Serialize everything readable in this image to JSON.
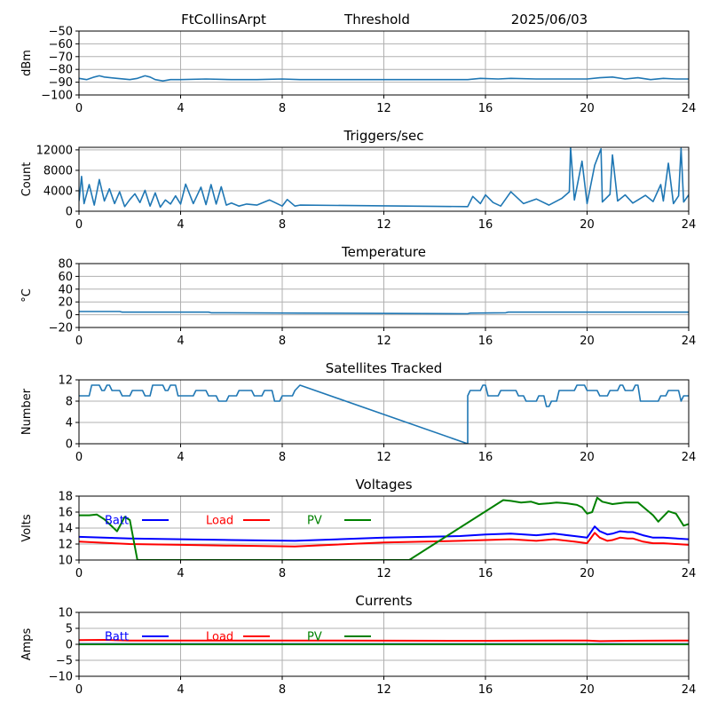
{
  "header": {
    "station": "FtCollinsArpt",
    "mode": "Threshold",
    "date": "2025/06/03"
  },
  "chart_data": [
    {
      "id": "signal",
      "type": "line",
      "title": "",
      "ylabel": "dBm",
      "xlim": [
        0,
        24
      ],
      "ylim": [
        -100,
        -50
      ],
      "xticks": [
        0,
        4,
        8,
        12,
        16,
        20,
        24
      ],
      "yticks": [
        -100,
        -90,
        -80,
        -70,
        -60,
        -50
      ],
      "grid": true,
      "series": [
        {
          "color": "#1f77b4",
          "x": [
            0,
            0.3,
            0.6,
            0.8,
            1.0,
            1.5,
            2.0,
            2.3,
            2.6,
            2.8,
            3.0,
            3.3,
            3.6,
            4,
            5,
            6,
            7,
            8,
            8.7,
            10,
            12,
            14,
            15.3,
            15.8,
            16.5,
            17,
            18,
            19,
            20,
            20.5,
            21,
            21.5,
            22,
            22.5,
            23,
            23.5,
            24
          ],
          "y": [
            -87,
            -88,
            -86,
            -85,
            -86,
            -87,
            -88,
            -87,
            -85,
            -86,
            -88,
            -89,
            -88,
            -88,
            -87.5,
            -88,
            -88,
            -87.5,
            -88,
            -88,
            -88,
            -88,
            -88,
            -87,
            -87.5,
            -87,
            -87.5,
            -87.5,
            -87.5,
            -86.5,
            -86,
            -87.5,
            -86.5,
            -88,
            -87,
            -87.5,
            -87.5
          ]
        }
      ]
    },
    {
      "id": "triggers",
      "type": "line",
      "title": "Triggers/sec",
      "ylabel": "Count",
      "xlim": [
        0,
        24
      ],
      "ylim": [
        0,
        12500
      ],
      "xticks": [
        0,
        4,
        8,
        12,
        16,
        20,
        24
      ],
      "yticks": [
        0,
        4000,
        8000,
        12000
      ],
      "grid": true,
      "series": [
        {
          "color": "#1f77b4",
          "x": [
            0,
            0.1,
            0.2,
            0.4,
            0.6,
            0.8,
            1.0,
            1.2,
            1.4,
            1.6,
            1.8,
            2.0,
            2.2,
            2.4,
            2.6,
            2.8,
            3.0,
            3.2,
            3.4,
            3.6,
            3.8,
            4.0,
            4.2,
            4.5,
            4.8,
            5.0,
            5.2,
            5.4,
            5.6,
            5.8,
            6.0,
            6.3,
            6.6,
            7.0,
            7.5,
            8.0,
            8.2,
            8.5,
            8.7,
            15.3,
            15.5,
            15.8,
            16.0,
            16.3,
            16.6,
            17.0,
            17.5,
            18.0,
            18.5,
            19.0,
            19.3,
            19.35,
            19.5,
            19.8,
            20.0,
            20.3,
            20.55,
            20.6,
            20.9,
            21.0,
            21.2,
            21.5,
            21.8,
            22.0,
            22.3,
            22.6,
            22.9,
            23.0,
            23.2,
            23.4,
            23.6,
            23.7,
            23.8,
            24
          ],
          "y": [
            2000,
            6800,
            1500,
            5200,
            1200,
            6200,
            2000,
            4400,
            1500,
            3800,
            900,
            2300,
            3400,
            1700,
            4100,
            1000,
            3600,
            800,
            2200,
            1400,
            3000,
            1400,
            5300,
            1500,
            4700,
            1300,
            5200,
            1400,
            4800,
            1200,
            1600,
            1000,
            1400,
            1200,
            2200,
            1000,
            2300,
            1000,
            1200,
            900,
            2900,
            1500,
            3200,
            1700,
            1000,
            3800,
            1500,
            2400,
            1200,
            2500,
            3800,
            12500,
            2200,
            9800,
            1500,
            9000,
            12200,
            1800,
            3300,
            11000,
            2000,
            3200,
            1600,
            2200,
            3100,
            1900,
            5200,
            2000,
            9400,
            1500,
            3000,
            12300,
            1800,
            3200
          ]
        }
      ]
    },
    {
      "id": "temperature",
      "type": "line",
      "title": "Temperature",
      "ylabel": "°C",
      "xlim": [
        0,
        24
      ],
      "ylim": [
        -20,
        80
      ],
      "xticks": [
        0,
        4,
        8,
        12,
        16,
        20,
        24
      ],
      "yticks": [
        -20,
        0,
        20,
        40,
        60,
        80
      ],
      "grid": true,
      "series": [
        {
          "color": "#1f77b4",
          "x": [
            0,
            1.6,
            1.7,
            5.1,
            5.2,
            8.7,
            15.3,
            15.4,
            16.8,
            16.9,
            24
          ],
          "y": [
            5,
            5,
            4,
            4,
            3,
            2.5,
            1.5,
            2.5,
            3,
            4,
            4
          ]
        }
      ]
    },
    {
      "id": "satellites",
      "type": "line",
      "title": "Satellites Tracked",
      "ylabel": "Number",
      "xlim": [
        0,
        24
      ],
      "ylim": [
        0,
        12
      ],
      "xticks": [
        0,
        4,
        8,
        12,
        16,
        20,
        24
      ],
      "yticks": [
        0,
        4,
        8,
        12
      ],
      "grid": true,
      "series": [
        {
          "color": "#1f77b4",
          "x": [
            0,
            0.4,
            0.5,
            0.8,
            0.9,
            1.0,
            1.1,
            1.2,
            1.3,
            1.6,
            1.7,
            2.0,
            2.1,
            2.5,
            2.6,
            2.8,
            2.9,
            3.3,
            3.4,
            3.5,
            3.6,
            3.8,
            3.9,
            4.5,
            4.6,
            5.0,
            5.1,
            5.4,
            5.5,
            5.8,
            5.9,
            6.2,
            6.3,
            6.8,
            6.9,
            7.2,
            7.3,
            7.6,
            7.7,
            7.9,
            8.0,
            8.4,
            8.5,
            8.7,
            15.3,
            15.3,
            15.4,
            15.8,
            15.9,
            16.0,
            16.1,
            16.5,
            16.6,
            17.2,
            17.3,
            17.5,
            17.6,
            18.0,
            18.1,
            18.3,
            18.4,
            18.5,
            18.6,
            18.8,
            18.9,
            19.5,
            19.6,
            19.9,
            20.0,
            20.4,
            20.5,
            20.8,
            20.9,
            21.2,
            21.3,
            21.4,
            21.5,
            21.8,
            21.9,
            22.0,
            22.1,
            22.8,
            22.9,
            23.1,
            23.2,
            23.6,
            23.7,
            23.8,
            24
          ],
          "y": [
            9,
            9,
            11,
            11,
            10,
            10,
            11,
            11,
            10,
            10,
            9,
            9,
            10,
            10,
            9,
            9,
            11,
            11,
            10,
            10,
            11,
            11,
            9,
            9,
            10,
            10,
            9,
            9,
            8,
            8,
            9,
            9,
            10,
            10,
            9,
            9,
            10,
            10,
            8,
            8,
            9,
            9,
            10,
            11,
            0,
            9,
            10,
            10,
            11,
            11,
            9,
            9,
            10,
            10,
            9,
            9,
            8,
            8,
            9,
            9,
            7,
            7,
            8,
            8,
            10,
            10,
            11,
            11,
            10,
            10,
            9,
            9,
            10,
            10,
            11,
            11,
            10,
            10,
            11,
            11,
            8,
            8,
            9,
            9,
            10,
            10,
            8,
            9,
            9
          ]
        }
      ]
    },
    {
      "id": "voltages",
      "type": "line",
      "title": "Voltages",
      "ylabel": "Volts",
      "xlim": [
        0,
        24
      ],
      "ylim": [
        10,
        18
      ],
      "xticks": [
        0,
        4,
        8,
        12,
        16,
        20,
        24
      ],
      "yticks": [
        10,
        12,
        14,
        16,
        18
      ],
      "grid": true,
      "legend": [
        {
          "label": "Batt",
          "color": "#0000ff"
        },
        {
          "label": "Load",
          "color": "#ff0000"
        },
        {
          "label": "PV",
          "color": "#008000"
        }
      ],
      "series": [
        {
          "name": "Batt",
          "color": "#0000ff",
          "x": [
            0,
            2,
            4,
            6,
            8.5,
            12,
            15,
            16,
            17,
            18,
            18.7,
            19.5,
            20.0,
            20.3,
            20.5,
            20.8,
            21.0,
            21.3,
            21.6,
            21.8,
            22.2,
            22.6,
            23.0,
            24
          ],
          "y": [
            12.9,
            12.7,
            12.6,
            12.5,
            12.4,
            12.8,
            13.0,
            13.2,
            13.3,
            13.1,
            13.3,
            13.0,
            12.8,
            14.2,
            13.6,
            13.2,
            13.3,
            13.6,
            13.5,
            13.5,
            13.1,
            12.8,
            12.8,
            12.6
          ]
        },
        {
          "name": "Load",
          "color": "#ff0000",
          "x": [
            0,
            2,
            4,
            6,
            8.5,
            12,
            15,
            16,
            17,
            18,
            18.7,
            19.5,
            20.0,
            20.3,
            20.5,
            20.8,
            21.0,
            21.3,
            21.6,
            21.8,
            22.2,
            22.6,
            23.0,
            24
          ],
          "y": [
            12.3,
            12.0,
            11.9,
            11.8,
            11.7,
            12.2,
            12.4,
            12.5,
            12.6,
            12.4,
            12.6,
            12.3,
            12.1,
            13.4,
            12.8,
            12.4,
            12.5,
            12.8,
            12.7,
            12.7,
            12.3,
            12.1,
            12.1,
            11.9
          ]
        },
        {
          "name": "PV",
          "color": "#008000",
          "x": [
            0,
            0.4,
            0.7,
            1.0,
            1.5,
            1.8,
            2.0,
            2.3,
            13.0,
            16.7,
            17.0,
            17.4,
            17.8,
            18.1,
            18.5,
            18.8,
            19.2,
            19.6,
            19.8,
            20.0,
            20.2,
            20.4,
            20.6,
            21.0,
            21.5,
            22.0,
            22.3,
            22.6,
            22.8,
            23.2,
            23.5,
            23.8,
            24.0
          ],
          "y": [
            15.6,
            15.6,
            15.7,
            15.1,
            13.6,
            15.4,
            15.0,
            10.0,
            10.0,
            17.5,
            17.4,
            17.2,
            17.3,
            17.0,
            17.1,
            17.2,
            17.1,
            16.9,
            16.6,
            15.8,
            16.0,
            17.8,
            17.3,
            17.0,
            17.2,
            17.2,
            16.4,
            15.6,
            14.8,
            16.1,
            15.8,
            14.3,
            14.5
          ]
        }
      ]
    },
    {
      "id": "currents",
      "type": "line",
      "title": "Currents",
      "ylabel": "Amps",
      "xlim": [
        0,
        24
      ],
      "ylim": [
        -10,
        10
      ],
      "xticks": [
        0,
        4,
        8,
        12,
        16,
        20,
        24
      ],
      "yticks": [
        -10,
        -5,
        0,
        5,
        10
      ],
      "grid": true,
      "legend": [
        {
          "label": "Batt",
          "color": "#0000ff"
        },
        {
          "label": "Load",
          "color": "#ff0000"
        },
        {
          "label": "PV",
          "color": "#008000"
        }
      ],
      "series": [
        {
          "name": "Batt",
          "color": "#0000ff",
          "x": [
            0,
            8,
            16,
            24
          ],
          "y": [
            0.1,
            0.1,
            0.1,
            0.1
          ]
        },
        {
          "name": "Load",
          "color": "#ff0000",
          "x": [
            0,
            1,
            2,
            8,
            16,
            20,
            20.5,
            21.5,
            24
          ],
          "y": [
            1.3,
            1.4,
            1.2,
            1.2,
            1.1,
            1.2,
            1.0,
            1.1,
            1.2
          ]
        },
        {
          "name": "PV",
          "color": "#008000",
          "x": [
            0,
            8,
            16,
            24
          ],
          "y": [
            0,
            0,
            0,
            0
          ]
        }
      ]
    }
  ]
}
